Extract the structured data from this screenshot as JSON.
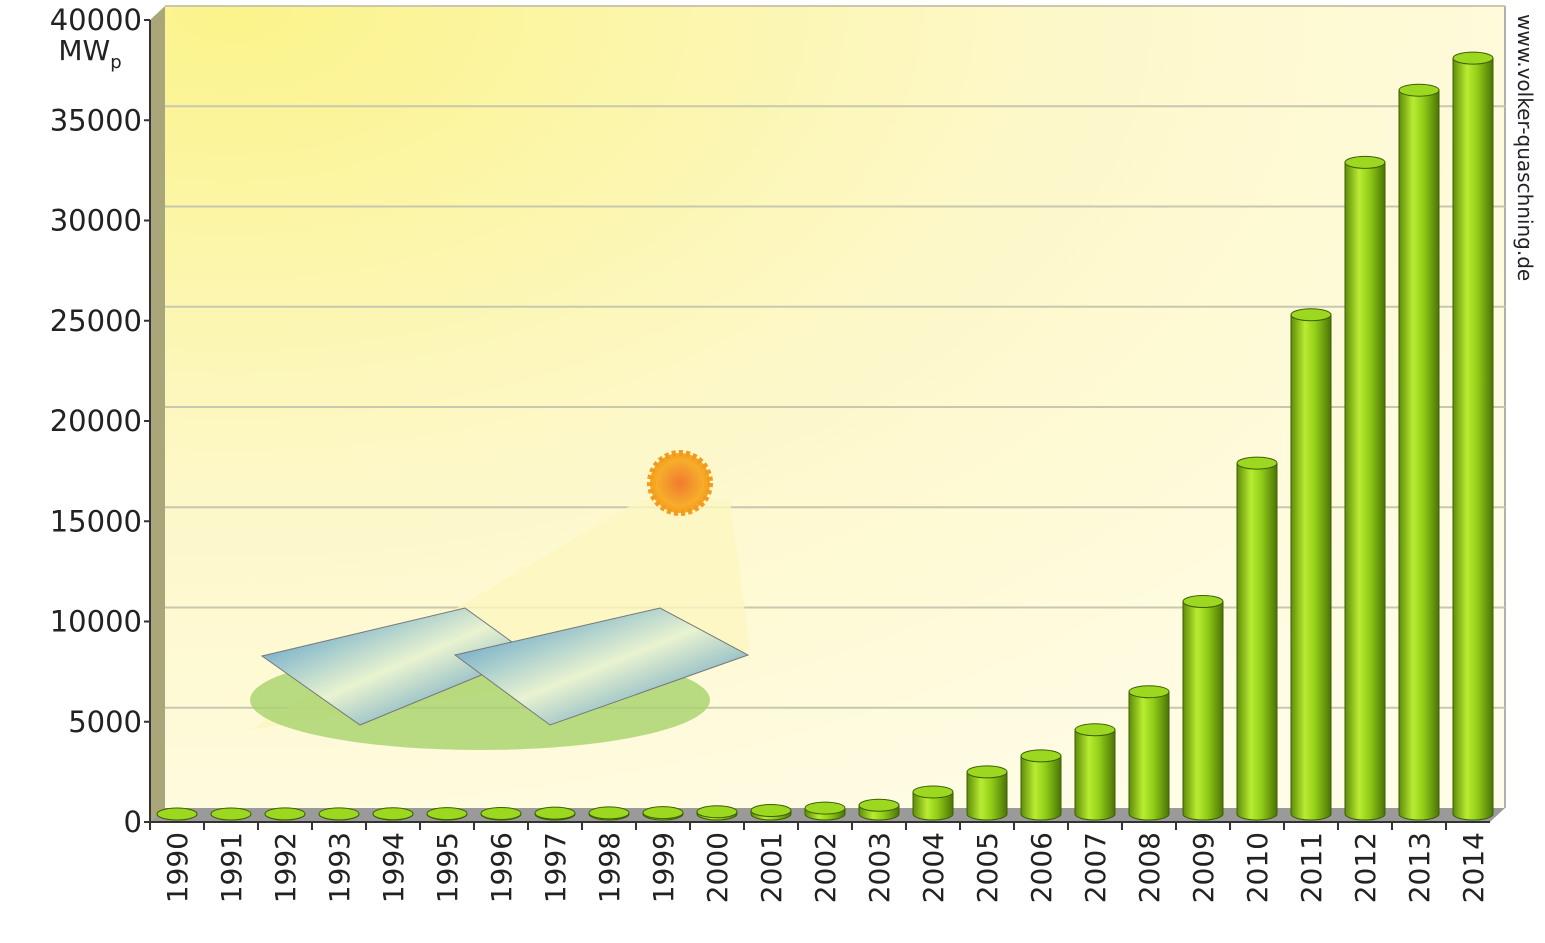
{
  "chart_data": {
    "type": "bar",
    "unit": {
      "text": "MW",
      "subscript": "p"
    },
    "source": "www.volker-quaschning.de",
    "categories": [
      "1990",
      "1991",
      "1992",
      "1993",
      "1994",
      "1995",
      "1996",
      "1997",
      "1998",
      "1999",
      "2000",
      "2001",
      "2002",
      "2003",
      "2004",
      "2005",
      "2006",
      "2007",
      "2008",
      "2009",
      "2010",
      "2011",
      "2012",
      "2013",
      "2014"
    ],
    "values": [
      2,
      3,
      6,
      9,
      12,
      18,
      28,
      42,
      54,
      70,
      114,
      176,
      296,
      435,
      1100,
      2100,
      2900,
      4200,
      6100,
      10600,
      17500,
      24900,
      32500,
      36100,
      37700
    ],
    "color": "#8fcc1a",
    "ylim": [
      0,
      40000
    ],
    "yticks": [
      0,
      5000,
      10000,
      15000,
      20000,
      25000,
      30000,
      35000,
      40000
    ],
    "grid": true
  }
}
